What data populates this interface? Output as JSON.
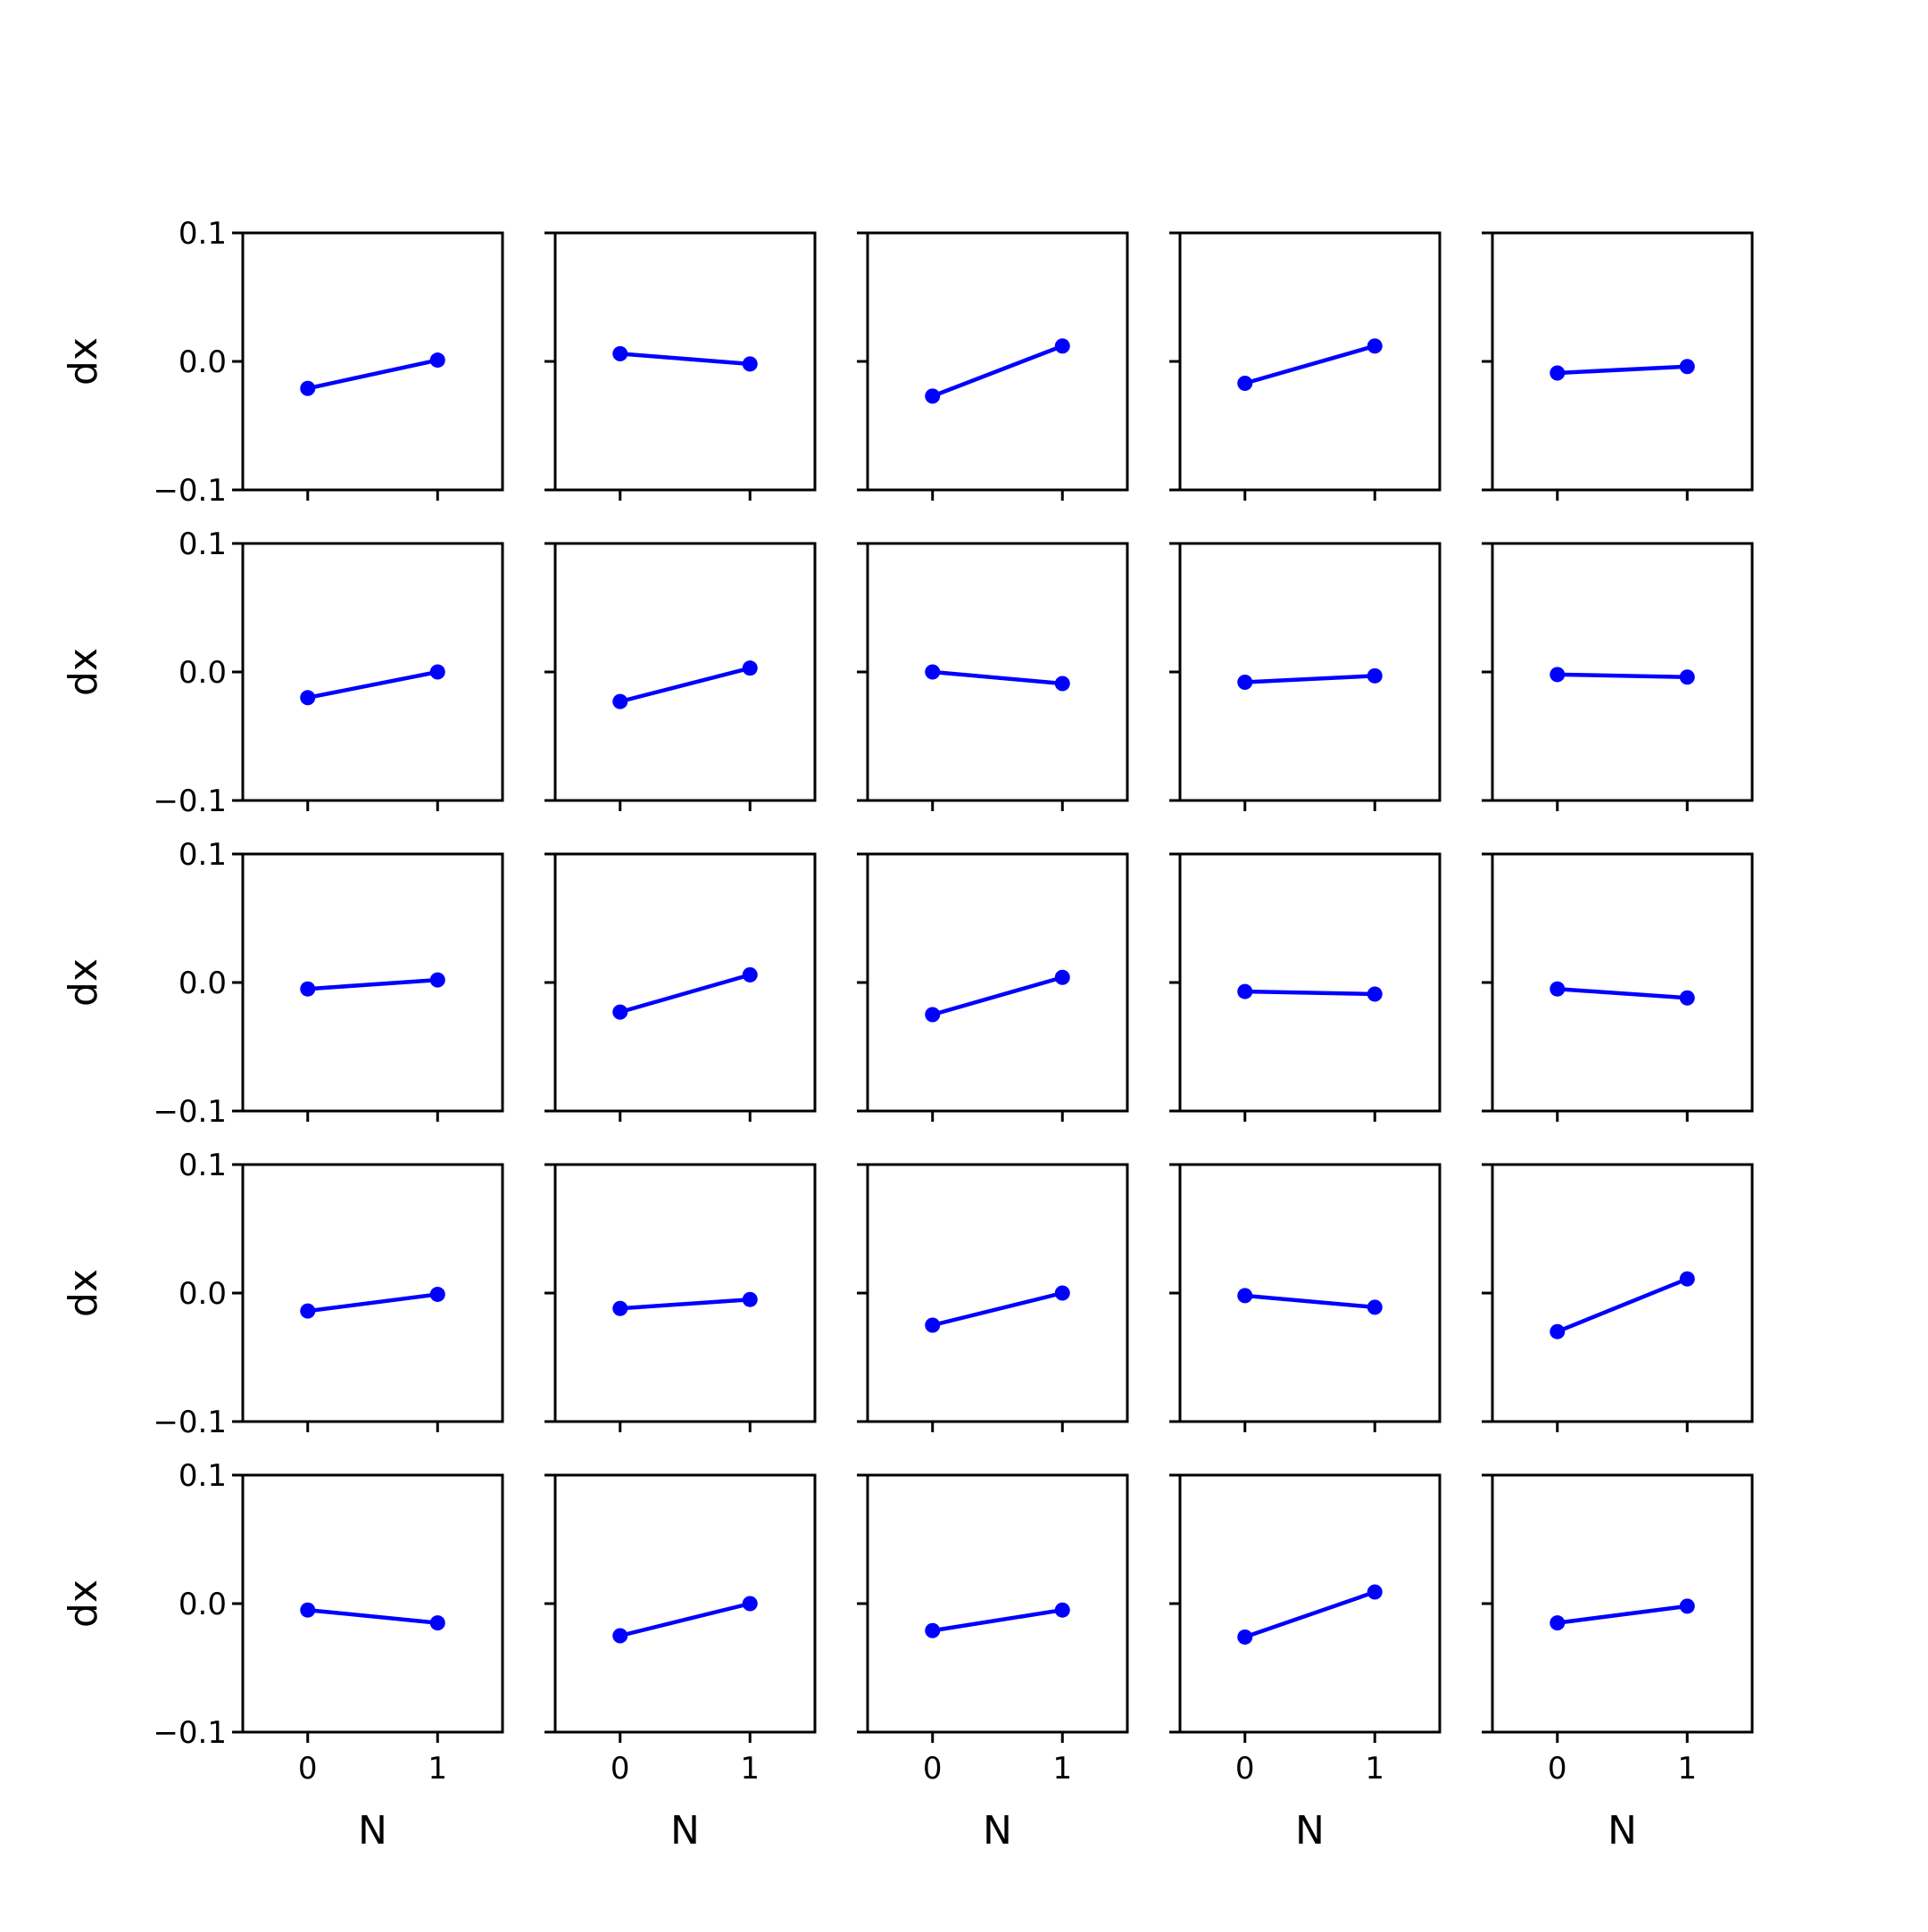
{
  "chart_data": {
    "type": "line",
    "layout": {
      "rows": 5,
      "cols": 5
    },
    "line_color": "#0000ff",
    "axes_color": "#000000",
    "background": "#ffffff",
    "grid": false,
    "xlabel": "N",
    "ylabel": "dx",
    "xlim": [
      -0.5,
      1.5
    ],
    "ylim": [
      -0.1,
      0.1
    ],
    "xticks": [
      0,
      1
    ],
    "xtick_labels": [
      "0",
      "1"
    ],
    "yticks": [
      -0.1,
      0.0,
      0.1
    ],
    "ytick_labels": [
      "−0.1",
      "0.0",
      "0.1"
    ],
    "x": [
      0,
      1
    ],
    "panels": [
      {
        "row": 0,
        "col": 0,
        "values": [
          -0.021,
          0.001
        ]
      },
      {
        "row": 0,
        "col": 1,
        "values": [
          0.006,
          -0.002
        ]
      },
      {
        "row": 0,
        "col": 2,
        "values": [
          -0.027,
          0.012
        ]
      },
      {
        "row": 0,
        "col": 3,
        "values": [
          -0.017,
          0.012
        ]
      },
      {
        "row": 0,
        "col": 4,
        "values": [
          -0.009,
          -0.004
        ]
      },
      {
        "row": 1,
        "col": 0,
        "values": [
          -0.02,
          0.0
        ]
      },
      {
        "row": 1,
        "col": 1,
        "values": [
          -0.023,
          0.003
        ]
      },
      {
        "row": 1,
        "col": 2,
        "values": [
          0.0,
          -0.009
        ]
      },
      {
        "row": 1,
        "col": 3,
        "values": [
          -0.008,
          -0.003
        ]
      },
      {
        "row": 1,
        "col": 4,
        "values": [
          -0.002,
          -0.004
        ]
      },
      {
        "row": 2,
        "col": 0,
        "values": [
          -0.005,
          0.002
        ]
      },
      {
        "row": 2,
        "col": 1,
        "values": [
          -0.023,
          0.006
        ]
      },
      {
        "row": 2,
        "col": 2,
        "values": [
          -0.025,
          0.004
        ]
      },
      {
        "row": 2,
        "col": 3,
        "values": [
          -0.007,
          -0.009
        ]
      },
      {
        "row": 2,
        "col": 4,
        "values": [
          -0.005,
          -0.012
        ]
      },
      {
        "row": 3,
        "col": 0,
        "values": [
          -0.014,
          -0.001
        ]
      },
      {
        "row": 3,
        "col": 1,
        "values": [
          -0.012,
          -0.005
        ]
      },
      {
        "row": 3,
        "col": 2,
        "values": [
          -0.025,
          0.0
        ]
      },
      {
        "row": 3,
        "col": 3,
        "values": [
          -0.002,
          -0.011
        ]
      },
      {
        "row": 3,
        "col": 4,
        "values": [
          -0.03,
          0.011
        ]
      },
      {
        "row": 4,
        "col": 0,
        "values": [
          -0.005,
          -0.015
        ]
      },
      {
        "row": 4,
        "col": 1,
        "values": [
          -0.025,
          0.0
        ]
      },
      {
        "row": 4,
        "col": 2,
        "values": [
          -0.021,
          -0.005
        ]
      },
      {
        "row": 4,
        "col": 3,
        "values": [
          -0.026,
          0.009
        ]
      },
      {
        "row": 4,
        "col": 4,
        "values": [
          -0.015,
          -0.002
        ]
      }
    ]
  }
}
